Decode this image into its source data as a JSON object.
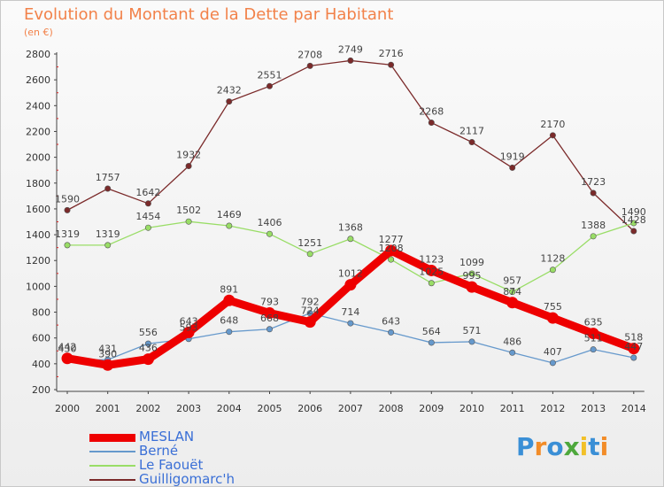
{
  "title": "Evolution du Montant de la Dette par Habitant",
  "unit_label": "(en €)",
  "brand": {
    "letters": [
      "P",
      "r",
      "o",
      "x",
      "i",
      "t",
      "i"
    ],
    "colors": [
      "#3a8fd6",
      "#f28c28",
      "#3a8fd6",
      "#4ea83c",
      "#f2c028",
      "#3a8fd6",
      "#f28c28"
    ]
  },
  "chart_data": {
    "type": "line",
    "title": "Evolution du Montant de la Dette par Habitant",
    "ylabel": "(en €)",
    "xlabel": "",
    "x": [
      "2000",
      "2001",
      "2002",
      "2003",
      "2004",
      "2005",
      "2006",
      "2007",
      "2008",
      "2009",
      "2010",
      "2011",
      "2012",
      "2013",
      "2014"
    ],
    "ylim": [
      200,
      2800
    ],
    "yticks": [
      200,
      400,
      600,
      800,
      1000,
      1200,
      1400,
      1600,
      1800,
      2000,
      2200,
      2400,
      2600,
      2800
    ],
    "grid": false,
    "legend_position": "bottom-left",
    "series": [
      {
        "name": "Guilligomarc'h",
        "color": "#7b2a2a",
        "values": [
          1590,
          1757,
          1642,
          1932,
          2432,
          2551,
          2708,
          2749,
          2716,
          2268,
          2117,
          1919,
          2170,
          1723,
          1428
        ]
      },
      {
        "name": "Le Faouët",
        "color": "#99dd66",
        "values": [
          1319,
          1319,
          1454,
          1502,
          1469,
          1406,
          1251,
          1368,
          1208,
          1025,
          1099,
          957,
          1128,
          1388,
          1490
        ]
      },
      {
        "name": "Berné",
        "color": "#6699cc",
        "values": [
          430,
          431,
          556,
          593,
          648,
          668,
          792,
          714,
          643,
          564,
          571,
          486,
          407,
          511,
          447
        ]
      },
      {
        "name": "MESLAN",
        "color": "#ee0000",
        "values": [
          442,
          390,
          436,
          643,
          891,
          793,
          724,
          1012,
          1277,
          1123,
          995,
          874,
          755,
          635,
          518
        ]
      }
    ],
    "legend_order": [
      "MESLAN",
      "Berné",
      "Le Faouët",
      "Guilligomarc'h"
    ]
  }
}
